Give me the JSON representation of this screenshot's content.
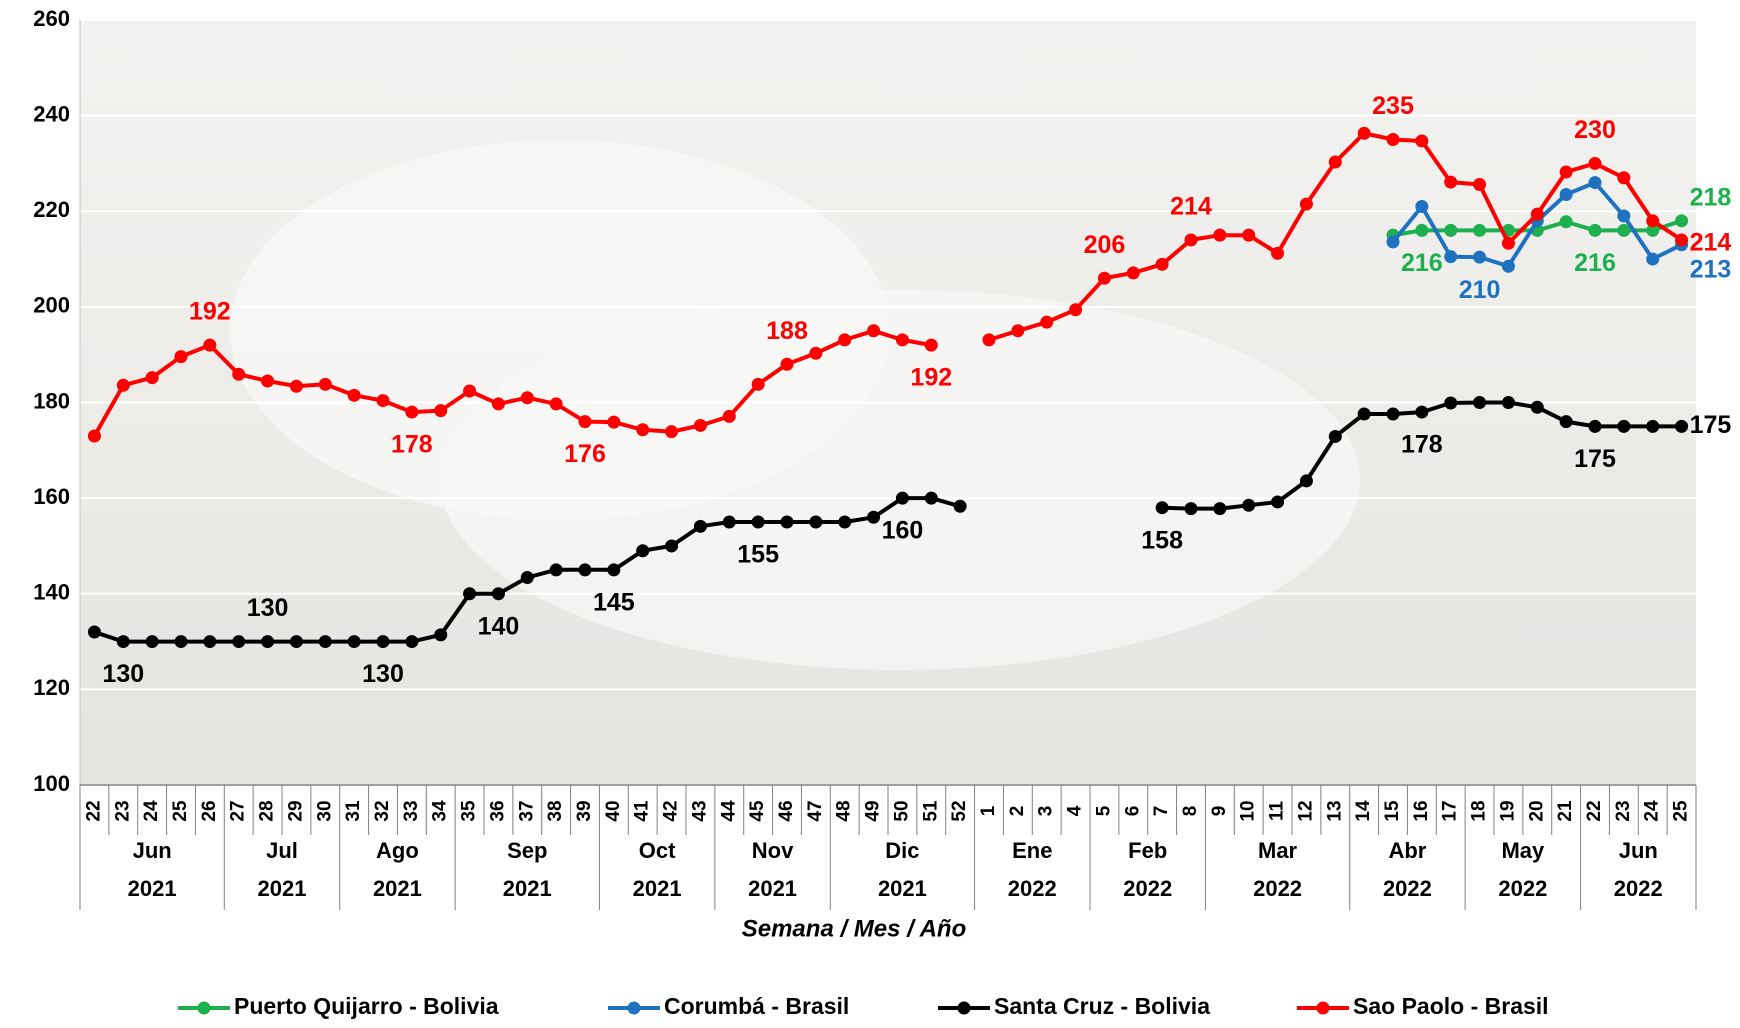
{
  "chart_data": {
    "type": "line",
    "x_label": "Semana / Mes / Año",
    "ylim": [
      100,
      260
    ],
    "yticks": [
      100,
      120,
      140,
      160,
      180,
      200,
      220,
      240,
      260
    ],
    "grid": true,
    "legend": "bottom",
    "groups": [
      {
        "month": "Jun",
        "year": "2021",
        "weeks": [
          "22",
          "23",
          "24",
          "25",
          "26"
        ]
      },
      {
        "month": "Jul",
        "year": "2021",
        "weeks": [
          "27",
          "28",
          "29",
          "30"
        ]
      },
      {
        "month": "Ago",
        "year": "2021",
        "weeks": [
          "31",
          "32",
          "33",
          "34"
        ]
      },
      {
        "month": "Sep",
        "year": "2021",
        "weeks": [
          "35",
          "36",
          "37",
          "38",
          "39"
        ]
      },
      {
        "month": "Oct",
        "year": "2021",
        "weeks": [
          "40",
          "41",
          "42",
          "43"
        ]
      },
      {
        "month": "Nov",
        "year": "2021",
        "weeks": [
          "44",
          "45",
          "46",
          "47"
        ]
      },
      {
        "month": "Dic",
        "year": "2021",
        "weeks": [
          "48",
          "49",
          "50",
          "51",
          "52"
        ]
      },
      {
        "month": "Ene",
        "year": "2022",
        "weeks": [
          "1",
          "2",
          "3",
          "4"
        ]
      },
      {
        "month": "Feb",
        "year": "2022",
        "weeks": [
          "5",
          "6",
          "7",
          "8"
        ]
      },
      {
        "month": "Mar",
        "year": "2022",
        "weeks": [
          "9",
          "10",
          "11",
          "12",
          "13"
        ]
      },
      {
        "month": "Abr",
        "year": "2022",
        "weeks": [
          "14",
          "15",
          "16",
          "17"
        ]
      },
      {
        "month": "May",
        "year": "2022",
        "weeks": [
          "18",
          "19",
          "20",
          "21"
        ]
      },
      {
        "month": "Jun",
        "year": "2022",
        "weeks": [
          "22",
          "23",
          "24",
          "25"
        ]
      }
    ],
    "series": [
      {
        "name": "Puerto Quijarro - Bolivia",
        "color": "#1fb04e",
        "values": [
          null,
          null,
          null,
          null,
          null,
          null,
          null,
          null,
          null,
          null,
          null,
          null,
          null,
          null,
          null,
          null,
          null,
          null,
          null,
          null,
          null,
          null,
          null,
          null,
          null,
          null,
          null,
          null,
          null,
          null,
          null,
          null,
          null,
          null,
          null,
          null,
          null,
          null,
          null,
          null,
          null,
          null,
          null,
          null,
          null,
          215,
          216,
          216,
          216,
          216,
          216,
          217.8,
          216,
          216,
          216,
          218
        ],
        "value_labels": [
          null,
          null,
          null,
          null,
          null,
          null,
          null,
          null,
          null,
          null,
          null,
          null,
          null,
          null,
          null,
          null,
          null,
          null,
          null,
          null,
          null,
          null,
          null,
          null,
          null,
          null,
          null,
          null,
          null,
          null,
          null,
          null,
          null,
          null,
          null,
          null,
          null,
          null,
          null,
          null,
          null,
          null,
          null,
          null,
          null,
          null,
          "216",
          null,
          null,
          null,
          null,
          null,
          "216",
          null,
          null,
          "218"
        ]
      },
      {
        "name": "Corumbá - Brasil",
        "color": "#1f72c0",
        "values": [
          null,
          null,
          null,
          null,
          null,
          null,
          null,
          null,
          null,
          null,
          null,
          null,
          null,
          null,
          null,
          null,
          null,
          null,
          null,
          null,
          null,
          null,
          null,
          null,
          null,
          null,
          null,
          null,
          null,
          null,
          null,
          null,
          null,
          null,
          null,
          null,
          null,
          null,
          null,
          null,
          null,
          null,
          null,
          null,
          null,
          213.6,
          221,
          210.5,
          210.4,
          208.5,
          218,
          223.5,
          226,
          219,
          210,
          213
        ],
        "value_labels": [
          null,
          null,
          null,
          null,
          null,
          null,
          null,
          null,
          null,
          null,
          null,
          null,
          null,
          null,
          null,
          null,
          null,
          null,
          null,
          null,
          null,
          null,
          null,
          null,
          null,
          null,
          null,
          null,
          null,
          null,
          null,
          null,
          null,
          null,
          null,
          null,
          null,
          null,
          null,
          null,
          null,
          null,
          null,
          null,
          null,
          null,
          null,
          null,
          "210",
          null,
          null,
          null,
          null,
          null,
          null,
          "213"
        ]
      },
      {
        "name": "Santa Cruz - Bolivia",
        "color": "#000000",
        "values": [
          132,
          130,
          130,
          130,
          130,
          130,
          130,
          130,
          130,
          130,
          130,
          130,
          131.4,
          140,
          140,
          143.4,
          145,
          145,
          145,
          149,
          150,
          154.1,
          155,
          155,
          155,
          155,
          155,
          156,
          160,
          160,
          158.3,
          null,
          null,
          null,
          null,
          null,
          null,
          158,
          157.8,
          157.8,
          158.5,
          159.2,
          163.6,
          172.9,
          177.6,
          177.6,
          178,
          179.9,
          180,
          180,
          179,
          176,
          175,
          175,
          175,
          175
        ],
        "value_labels": [
          null,
          "130",
          null,
          null,
          null,
          null,
          "130",
          null,
          null,
          null,
          "130",
          null,
          null,
          null,
          "140",
          null,
          null,
          null,
          "145",
          null,
          null,
          null,
          null,
          "155",
          null,
          null,
          null,
          null,
          "160",
          null,
          null,
          null,
          null,
          null,
          null,
          null,
          null,
          "158",
          null,
          null,
          null,
          null,
          null,
          null,
          null,
          null,
          "178",
          null,
          null,
          null,
          null,
          null,
          "175",
          null,
          null,
          "175"
        ]
      },
      {
        "name": "Sao Paolo - Brasil",
        "color": "#ff0000",
        "values": [
          173,
          183.6,
          185.2,
          189.6,
          192,
          185.9,
          184.5,
          183.4,
          183.8,
          181.5,
          180.4,
          178,
          178.3,
          182.4,
          179.7,
          181,
          179.7,
          176,
          175.9,
          174.3,
          173.9,
          175.2,
          177.1,
          183.8,
          188,
          190.3,
          193.1,
          195,
          193.1,
          192,
          null,
          193.1,
          195,
          196.8,
          199.4,
          206,
          207.1,
          208.9,
          214,
          215,
          215,
          211.2,
          221.5,
          230.3,
          236.3,
          235,
          234.7,
          226.1,
          225.6,
          213.3,
          219.4,
          228.2,
          230,
          227,
          218,
          214
        ],
        "value_labels": [
          null,
          null,
          null,
          null,
          "192",
          null,
          null,
          null,
          null,
          null,
          null,
          "178",
          null,
          null,
          null,
          null,
          null,
          "176",
          null,
          null,
          null,
          null,
          null,
          null,
          "188",
          null,
          null,
          null,
          null,
          "192",
          null,
          null,
          null,
          null,
          null,
          "206",
          null,
          null,
          "214",
          null,
          null,
          null,
          null,
          null,
          null,
          "235",
          null,
          null,
          null,
          null,
          null,
          null,
          "230",
          null,
          null,
          "214"
        ]
      }
    ]
  }
}
